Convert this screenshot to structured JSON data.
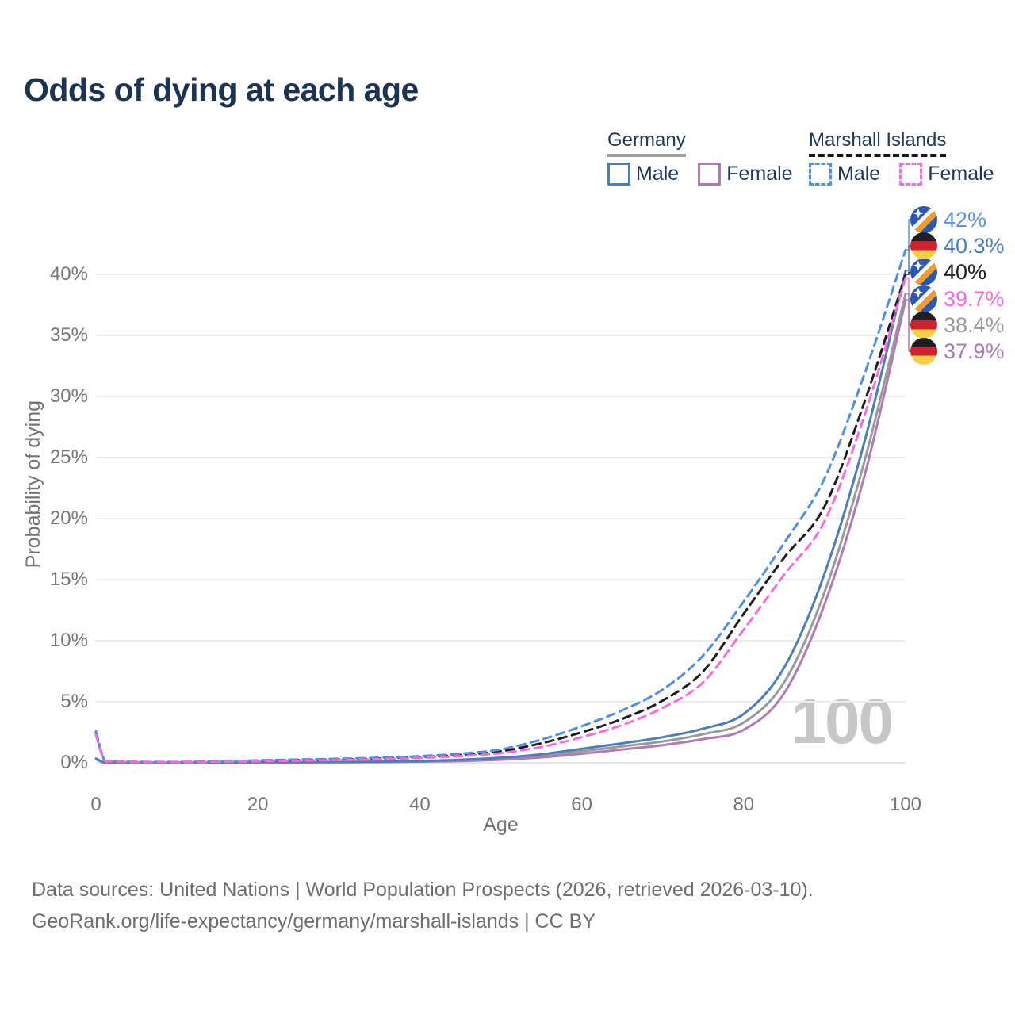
{
  "title": "Odds of dying at each age",
  "legend": {
    "groups": [
      {
        "name": "Germany",
        "line_style": "solid",
        "underline_color": "#9e9e9e",
        "items": [
          {
            "label": "Male",
            "color": "#4a7ebd"
          },
          {
            "label": "Female",
            "color": "#b27ab2"
          }
        ]
      },
      {
        "name": "Marshall Islands",
        "line_style": "dashed",
        "underline_color": "#161616",
        "items": [
          {
            "label": "Male",
            "color": "#4f8fe6"
          },
          {
            "label": "Female",
            "color": "#fb6ad9"
          }
        ]
      }
    ]
  },
  "axes": {
    "y_title": "Probability of dying",
    "x_title": "Age",
    "y_ticks": [
      {
        "v": 0,
        "label": "0%"
      },
      {
        "v": 5,
        "label": "5%"
      },
      {
        "v": 10,
        "label": "10%"
      },
      {
        "v": 15,
        "label": "15%"
      },
      {
        "v": 20,
        "label": "20%"
      },
      {
        "v": 25,
        "label": "25%"
      },
      {
        "v": 30,
        "label": "30%"
      },
      {
        "v": 35,
        "label": "35%"
      },
      {
        "v": 40,
        "label": "40%"
      }
    ],
    "x_ticks": [
      {
        "v": 0,
        "label": "0"
      },
      {
        "v": 20,
        "label": "20"
      },
      {
        "v": 40,
        "label": "40"
      },
      {
        "v": 60,
        "label": "60"
      },
      {
        "v": 80,
        "label": "80"
      },
      {
        "v": 100,
        "label": "100"
      }
    ]
  },
  "watermark": "100",
  "end_labels": [
    {
      "flag": "marshall-islands",
      "text": "42%",
      "color": "#5b96e8",
      "series": "mh_male"
    },
    {
      "flag": "germany",
      "text": "40.3%",
      "color": "#4a7ebd",
      "series": "de_male"
    },
    {
      "flag": "marshall-islands",
      "text": "40%",
      "color": "#222222",
      "series": "mh_both"
    },
    {
      "flag": "marshall-islands",
      "text": "39.7%",
      "color": "#fb6ad9",
      "series": "mh_female"
    },
    {
      "flag": "germany",
      "text": "38.4%",
      "color": "#9a9a9a",
      "series": "de_both"
    },
    {
      "flag": "germany",
      "text": "37.9%",
      "color": "#a87ab5",
      "series": "de_female"
    }
  ],
  "flags": {
    "germany": {
      "black": "#1f1f23",
      "red": "#d22030",
      "gold": "#f6cf45"
    },
    "marshall_islands": {
      "blue": "#2a58b8",
      "orange": "#f39c2c",
      "star": "#ffffff",
      "stripe": "#ffffff"
    }
  },
  "source": {
    "line1": "Data sources: United Nations | World Population Prospects (2026, retrieved 2026-03-10).",
    "line2": "GeoRank.org/life-expectancy/germany/marshall-islands | CC BY"
  },
  "chart_data": {
    "type": "line",
    "title": "Odds of dying at each age",
    "xlabel": "Age",
    "ylabel": "Probability of dying",
    "xlim": [
      0,
      100
    ],
    "ylim": [
      0,
      43.5
    ],
    "y_unit": "percent",
    "grid": "horizontal",
    "legend_position": "top-right",
    "x": [
      0,
      1,
      2,
      3,
      5,
      10,
      15,
      20,
      25,
      30,
      35,
      40,
      45,
      50,
      55,
      60,
      65,
      70,
      75,
      80,
      85,
      90,
      95,
      100
    ],
    "series": [
      {
        "key": "de_both",
        "name": "Germany both sexes",
        "color": "#9a9a9a",
        "dash": "solid",
        "values": [
          0.33,
          0.03,
          0.02,
          0.01,
          0.01,
          0.01,
          0.02,
          0.04,
          0.05,
          0.06,
          0.08,
          0.12,
          0.2,
          0.33,
          0.55,
          0.95,
          1.35,
          1.75,
          2.35,
          3.3,
          6.6,
          14.0,
          24.9,
          38.4
        ]
      },
      {
        "key": "de_female",
        "name": "Germany female",
        "color": "#b27ab2",
        "dash": "solid",
        "values": [
          0.3,
          0.02,
          0.01,
          0.01,
          0.01,
          0.01,
          0.02,
          0.03,
          0.04,
          0.05,
          0.06,
          0.09,
          0.15,
          0.26,
          0.45,
          0.75,
          1.1,
          1.45,
          1.95,
          2.7,
          5.7,
          13.0,
          23.7,
          37.9
        ]
      },
      {
        "key": "de_male",
        "name": "Germany male",
        "color": "#4a7ebd",
        "dash": "solid",
        "values": [
          0.35,
          0.03,
          0.02,
          0.01,
          0.01,
          0.01,
          0.03,
          0.06,
          0.06,
          0.07,
          0.1,
          0.15,
          0.25,
          0.42,
          0.7,
          1.15,
          1.6,
          2.1,
          2.8,
          4.0,
          7.8,
          15.5,
          26.5,
          40.3
        ]
      },
      {
        "key": "mh_both",
        "name": "Marshall Islands both sexes",
        "color": "#1c1c1c",
        "dash": "dashed",
        "values": [
          2.45,
          0.28,
          0.14,
          0.09,
          0.07,
          0.06,
          0.1,
          0.17,
          0.23,
          0.28,
          0.36,
          0.48,
          0.65,
          0.95,
          1.6,
          2.5,
          3.6,
          5.1,
          7.5,
          12.2,
          16.8,
          21.0,
          29.7,
          40.0
        ]
      },
      {
        "key": "mh_male",
        "name": "Marshall Islands male",
        "color": "#4f8fe6",
        "dash": "dashed",
        "values": [
          2.6,
          0.3,
          0.15,
          0.1,
          0.08,
          0.07,
          0.12,
          0.2,
          0.27,
          0.33,
          0.42,
          0.55,
          0.75,
          1.1,
          1.9,
          3.0,
          4.3,
          6.0,
          8.8,
          13.2,
          18.0,
          23.3,
          32.0,
          42.0
        ]
      },
      {
        "key": "mh_female",
        "name": "Marshall Islands female",
        "color": "#fb6ad9",
        "dash": "dashed",
        "values": [
          2.3,
          0.26,
          0.13,
          0.08,
          0.06,
          0.05,
          0.08,
          0.13,
          0.18,
          0.23,
          0.3,
          0.4,
          0.55,
          0.8,
          1.3,
          2.1,
          3.1,
          4.5,
          6.6,
          10.9,
          15.4,
          19.8,
          28.6,
          39.7
        ]
      }
    ],
    "end_values": {
      "mh_male": 42.0,
      "de_male": 40.3,
      "mh_both": 40.0,
      "mh_female": 39.7,
      "de_both": 38.4,
      "de_female": 37.9
    }
  }
}
